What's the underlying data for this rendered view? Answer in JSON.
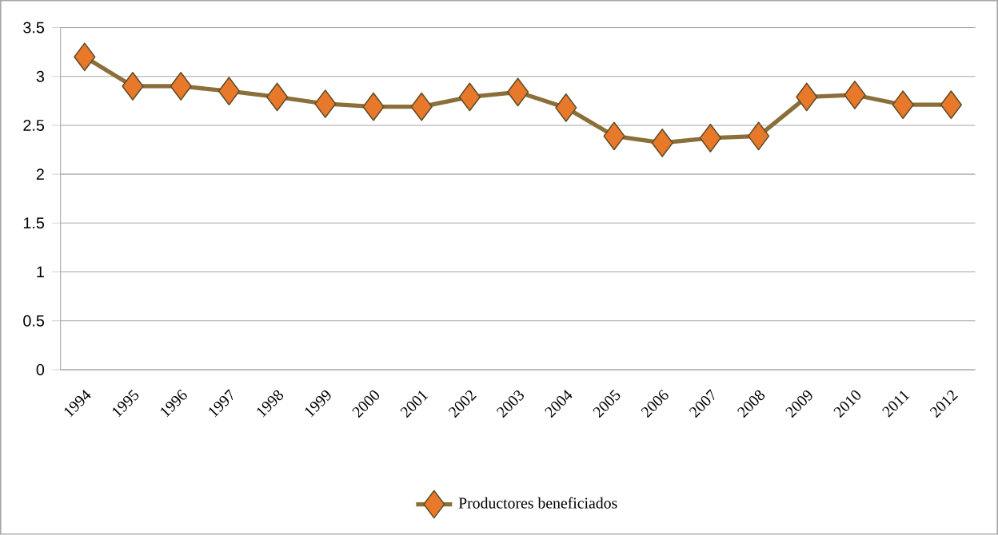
{
  "chart_data": {
    "type": "line",
    "categories": [
      "1994",
      "1995",
      "1996",
      "1997",
      "1998",
      "1999",
      "2000",
      "2001",
      "2002",
      "2003",
      "2004",
      "2005",
      "2006",
      "2007",
      "2008",
      "2009",
      "2010",
      "2011",
      "2012"
    ],
    "series": [
      {
        "name": "Productores beneficiados",
        "color": "#8b6f3a",
        "values": [
          3.2,
          2.9,
          2.9,
          2.85,
          2.79,
          2.72,
          2.69,
          2.69,
          2.79,
          2.84,
          2.68,
          2.39,
          2.32,
          2.37,
          2.39,
          2.79,
          2.81,
          2.71,
          2.71
        ]
      }
    ],
    "ylim": [
      0,
      3.5
    ],
    "yticks": [
      0,
      0.5,
      1,
      1.5,
      2,
      2.5,
      3,
      3.5
    ],
    "grid": "y",
    "legend": "bottom",
    "marker": "diamond",
    "line_style": "solid"
  }
}
